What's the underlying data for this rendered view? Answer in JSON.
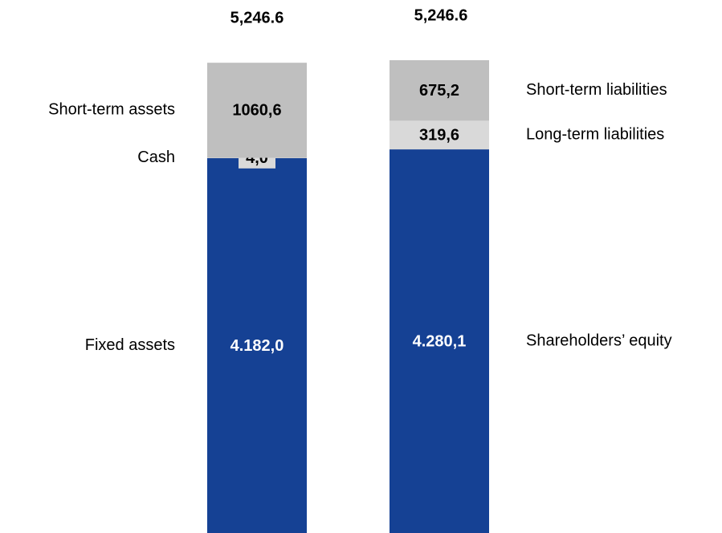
{
  "chart_data": {
    "type": "stacked_bar",
    "categories": [
      null,
      null
    ],
    "total_labels": [
      "5,246.6",
      "5,246.6"
    ],
    "series": [
      {
        "name": "Fixed assets",
        "color": "#154194",
        "values": [
          4182.0,
          null
        ],
        "value_labels": [
          "4.182,0",
          null
        ]
      },
      {
        "name": "Cash",
        "color": "#d9d9d9",
        "values": [
          4.0,
          null
        ],
        "value_labels": [
          "4,0",
          null
        ]
      },
      {
        "name": "Short-term assets",
        "color": "#bfbfbf",
        "values": [
          1060.6,
          null
        ],
        "value_labels": [
          "1060,6",
          null
        ]
      },
      {
        "name": "Shareholders’ equity",
        "color": "#154194",
        "values": [
          null,
          4280.1
        ],
        "value_labels": [
          null,
          "4.280,1"
        ]
      },
      {
        "name": "Long-term liabilities",
        "color": "#d9d9d9",
        "values": [
          null,
          319.6
        ],
        "value_labels": [
          null,
          "319,6"
        ]
      },
      {
        "name": "Short-term liabilities",
        "color": "#bfbfbf",
        "values": [
          null,
          675.2
        ],
        "value_labels": [
          null,
          "675,2"
        ]
      }
    ]
  }
}
